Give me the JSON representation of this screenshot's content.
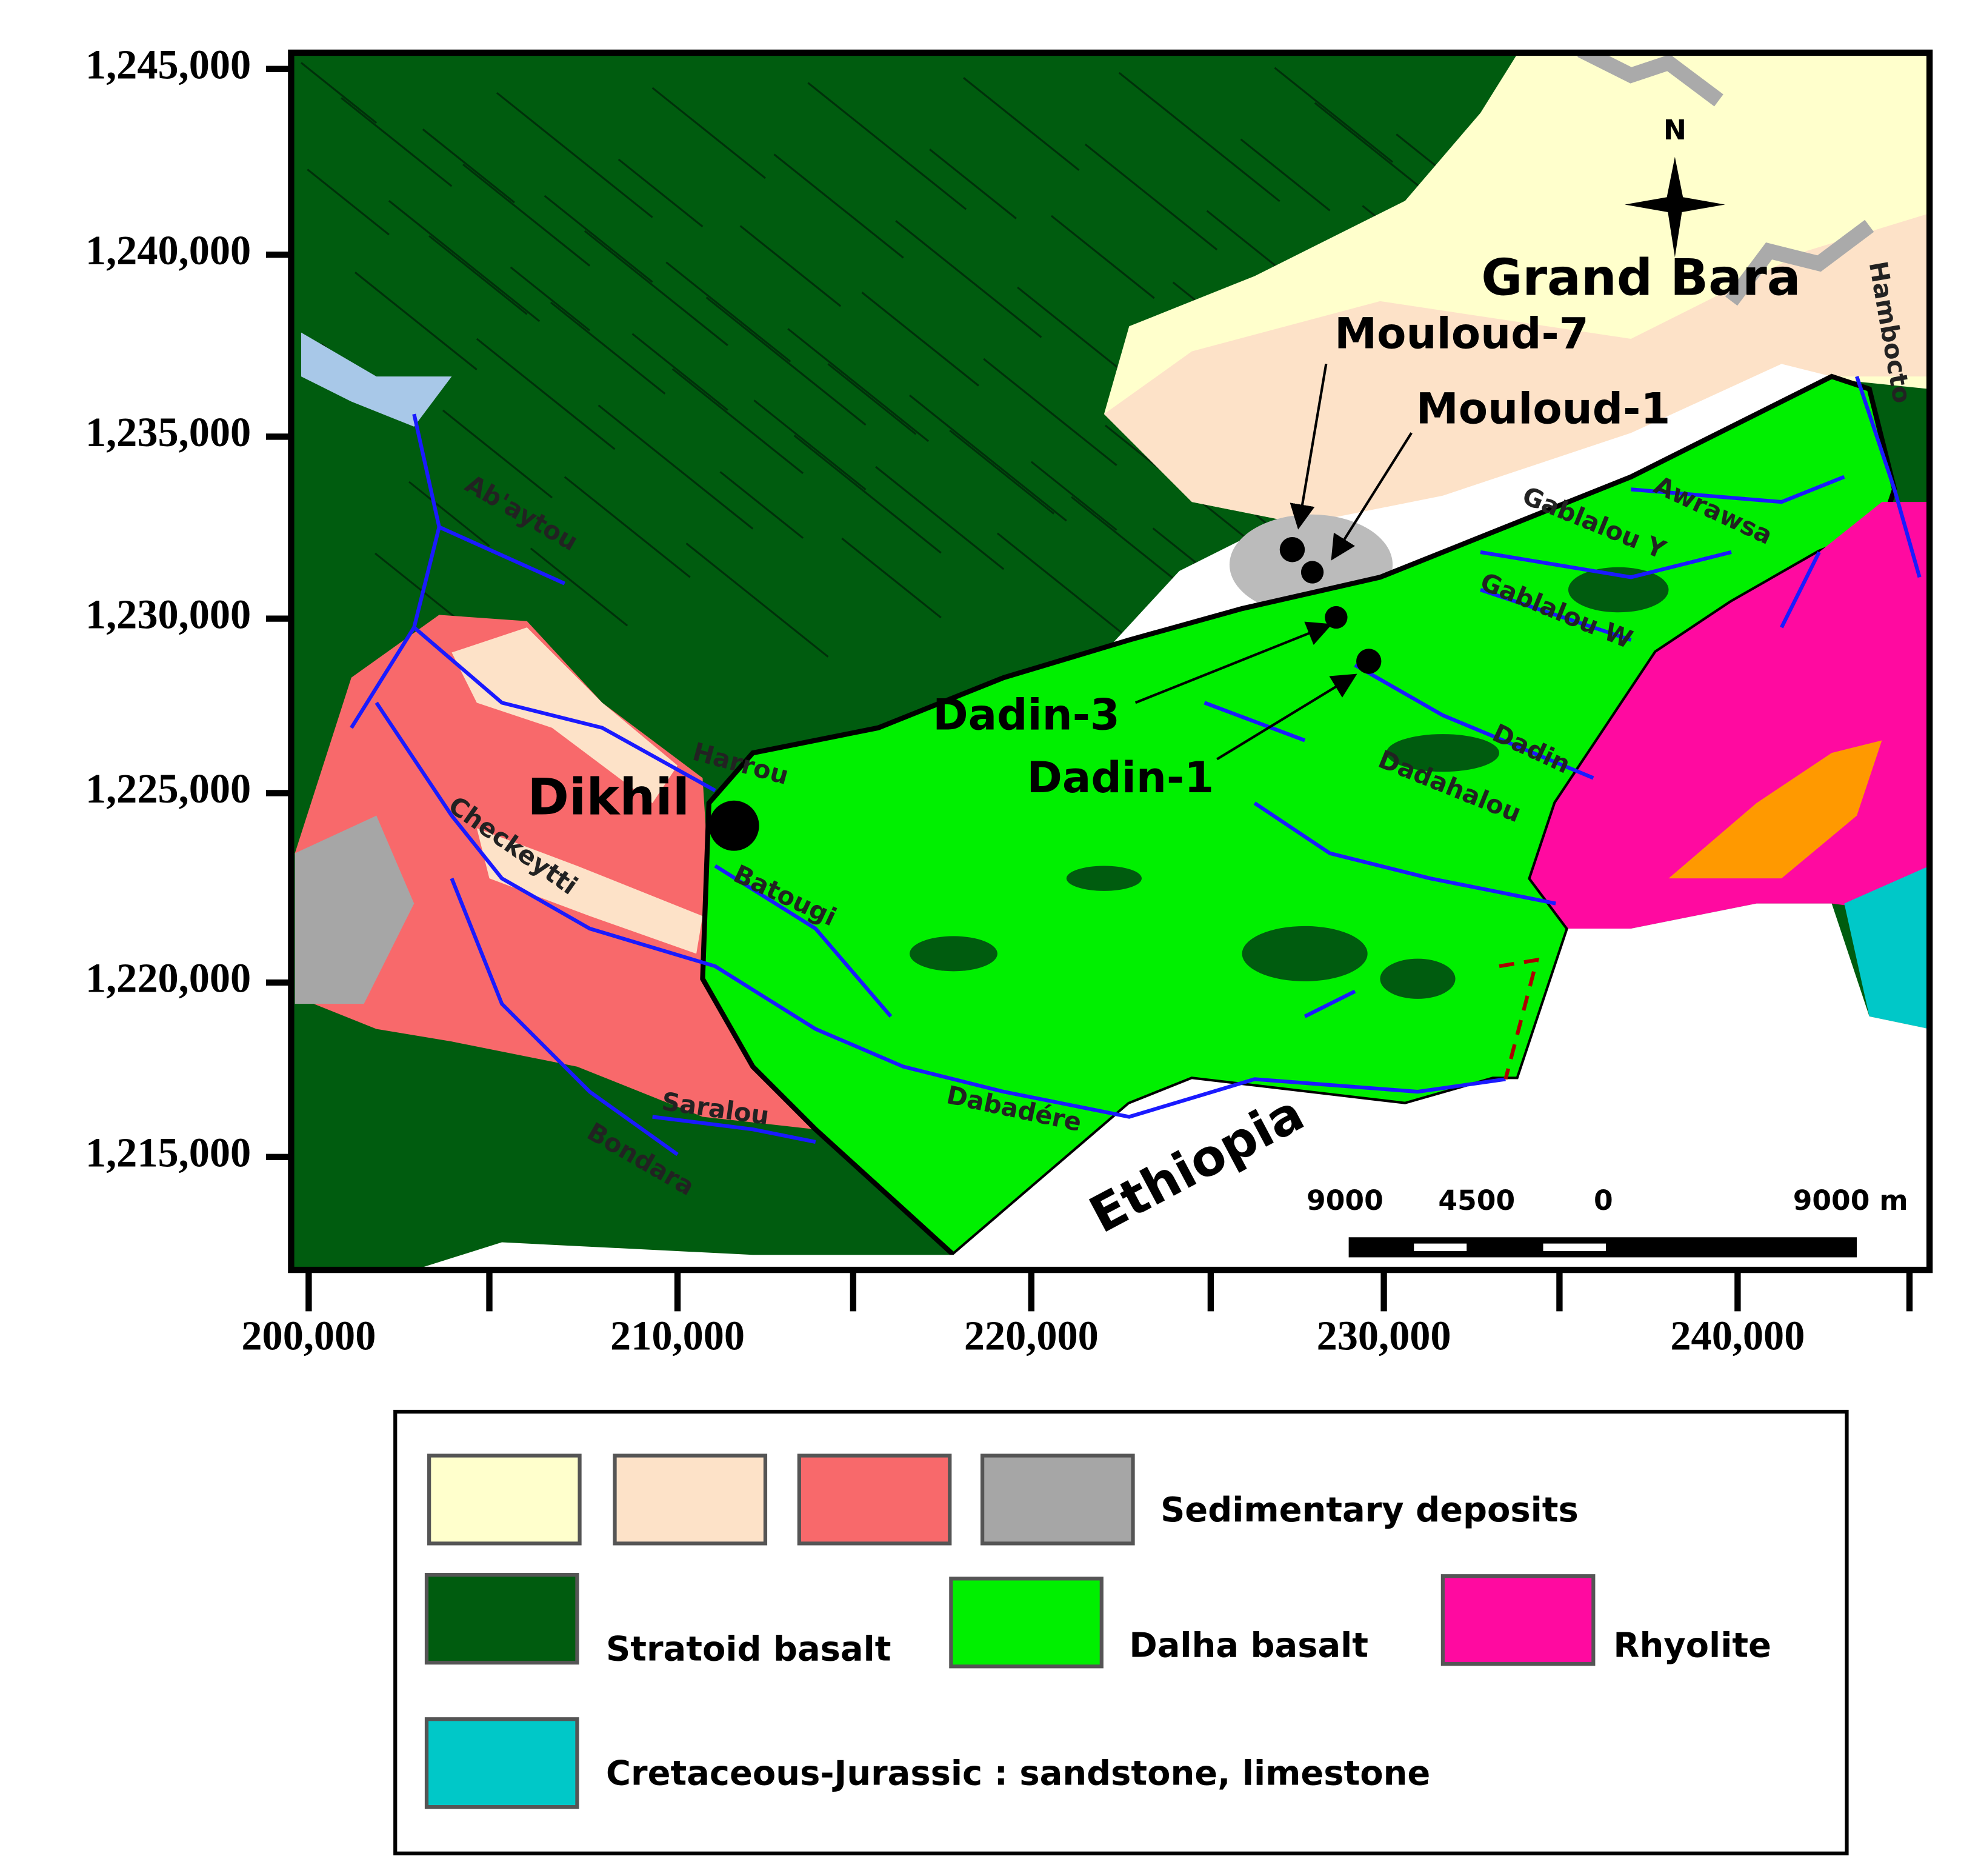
{
  "map": {
    "y_axis_labels": [
      "1,245,000",
      "1,240,000",
      "1,235,000",
      "1,230,000",
      "1,225,000",
      "1,220,000",
      "1,215,000"
    ],
    "x_axis_labels": [
      "200,000",
      "210,000",
      "220,000",
      "230,000",
      "240,000"
    ],
    "places": {
      "grand_bara": "Grand Bara",
      "dikhil": "Dikhil",
      "ethiopia": "Ethiopia",
      "north": "N"
    },
    "wells": [
      "Mouloud-7",
      "Mouloud-1",
      "Dadin-3",
      "Dadin-1"
    ],
    "rivers": [
      "Ab'aytou",
      "Harrou",
      "Checkeytti",
      "Batougi",
      "Saralou",
      "Bondara",
      "Dabadére",
      "Dadahalou",
      "Dadin",
      "Gablalou W",
      "Gablalou Y",
      "Awrawsa",
      "Hambocto"
    ],
    "scale_bar": [
      "9000",
      "4500",
      "0",
      "9000 m"
    ],
    "legend": [
      {
        "label": "Sedimentary deposits",
        "colors": [
          "#ffffcc",
          "#fde2c8",
          "#f8696b",
          "#a6a6a6"
        ]
      },
      {
        "label": "Stratoid   basalt",
        "colors": [
          "#005c0f"
        ]
      },
      {
        "label": "Dalha basalt",
        "colors": [
          "#00f000"
        ]
      },
      {
        "label": "Rhyolite",
        "colors": [
          "#ff0aa0"
        ]
      },
      {
        "label": "Cretaceous-Jurassic : sandstone, limestone",
        "colors": [
          "#00c8c8"
        ]
      }
    ]
  }
}
